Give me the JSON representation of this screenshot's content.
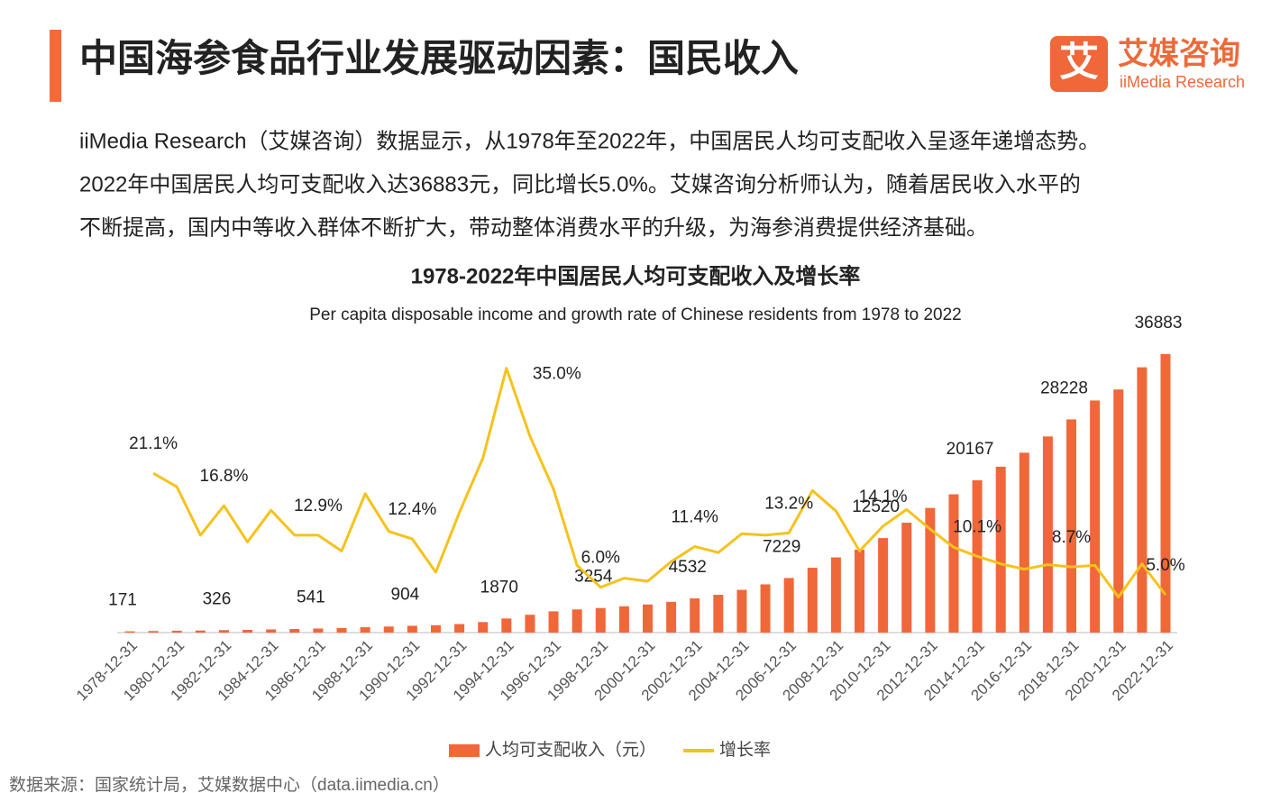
{
  "header": {
    "title": "中国海参食品行业发展驱动因素：国民收入"
  },
  "logo": {
    "mark": "艾",
    "name": "艾媒咨询",
    "name_en": "iiMedia Research"
  },
  "paragraph": [
    "iiMedia Research（艾媒咨询）数据显示，从1978年至2022年，中国居民人均可支配收入呈逐年递增态势。",
    "2022年中国居民人均可支配收入达36883元，同比增长5.0%。艾媒咨询分析师认为，随着居民收入水平的",
    "不断提高，国内中等收入群体不断扩大，带动整体消费水平的升级，为海参消费提供经济基础。"
  ],
  "chart_data": {
    "type": "bar",
    "title": "1978-2022年中国居民人均可支配收入及增长率",
    "subtitle": "Per capita disposable income and growth rate of Chinese residents from 1978 to 2022",
    "categories": [
      "1978-12-31",
      null,
      "1980-12-31",
      null,
      "1982-12-31",
      null,
      "1984-12-31",
      null,
      "1986-12-31",
      null,
      "1988-12-31",
      null,
      "1990-12-31",
      null,
      "1992-12-31",
      null,
      "1994-12-31",
      null,
      "1996-12-31",
      null,
      "1998-12-31",
      null,
      "2000-12-31",
      null,
      "2002-12-31",
      null,
      "2004-12-31",
      null,
      "2006-12-31",
      null,
      "2008-12-31",
      null,
      "2010-12-31",
      null,
      "2012-12-31",
      null,
      "2014-12-31",
      null,
      "2016-12-31",
      null,
      "2018-12-31",
      null,
      "2020-12-31",
      null,
      "2022-12-31"
    ],
    "series": [
      {
        "name": "人均可支配收入（元）",
        "type": "bar",
        "color": "#f0673a",
        "values": [
          171,
          207,
          247,
          279,
          326,
          365,
          424,
          479,
          541,
          600,
          711,
          806,
          904,
          976,
          1131,
          1393,
          1870,
          2363,
          2814,
          3070,
          3254,
          3485,
          3721,
          4070,
          4532,
          5007,
          5661,
          6385,
          7229,
          8584,
          9957,
          10977,
          12520,
          14551,
          16510,
          18311,
          20167,
          21966,
          23821,
          25974,
          28228,
          30733,
          32189,
          35128,
          36883
        ]
      },
      {
        "name": "增长率",
        "type": "line",
        "axis": "y2",
        "color": "#f6c21c",
        "values": [
          null,
          21.1,
          19.3,
          12.9,
          16.8,
          12.0,
          16.2,
          12.9,
          12.9,
          10.8,
          18.4,
          13.4,
          12.4,
          8.0,
          15.9,
          23.1,
          35.0,
          26.0,
          19.0,
          8.9,
          6.0,
          7.2,
          6.8,
          9.4,
          11.4,
          10.6,
          13.1,
          12.9,
          13.2,
          18.8,
          16.1,
          10.8,
          14.1,
          16.3,
          13.7,
          11.3,
          10.1,
          9.1,
          8.4,
          9.0,
          8.7,
          8.9,
          4.7,
          9.1,
          5.0
        ],
        "value_labels": [
          null,
          "21.1%",
          null,
          null,
          "16.8%",
          null,
          null,
          null,
          "12.9%",
          null,
          null,
          null,
          "12.4%",
          null,
          null,
          null,
          "35.0%",
          null,
          null,
          null,
          "6.0%",
          null,
          null,
          null,
          "11.4%",
          null,
          null,
          null,
          "13.2%",
          null,
          null,
          null,
          "14.1%",
          null,
          null,
          null,
          "10.1%",
          null,
          null,
          null,
          "8.7%",
          null,
          null,
          null,
          "5.0%"
        ]
      }
    ],
    "ylim": [
      0,
      42000
    ],
    "y2lim": [
      0,
      42
    ]
  },
  "source": "数据来源：国家统计局，艾媒数据中心（data.iimedia.cn）"
}
